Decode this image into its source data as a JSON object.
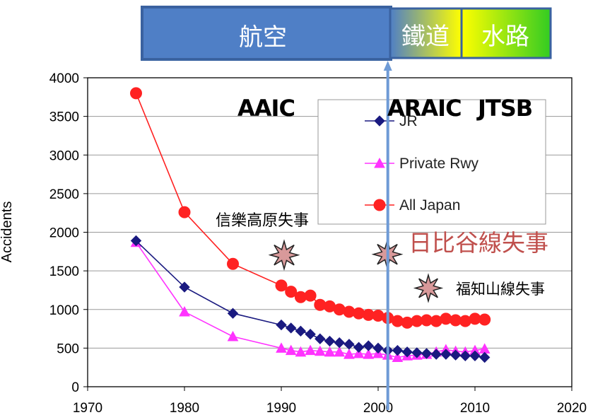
{
  "bands": {
    "air": "航空",
    "rail": "鐵道",
    "marine": "水路"
  },
  "agencies": {
    "aaic": "AAIC",
    "araic": "ARAIC",
    "jtsb": "JTSB"
  },
  "annotations": {
    "shigaraki": "信樂高原失事",
    "hibiya": "日比谷線失事",
    "fukuchiyama": "福知山線失事"
  },
  "colors": {
    "jr": "#1a1a80",
    "private": "#ff33ff",
    "all": "#ff2222",
    "band_air": "#4f7fc6",
    "band_rail_from": "#4f7fc6",
    "band_rail_to": "#ffff00",
    "band_marine_from": "#ffff00",
    "band_marine_to": "#33cc22",
    "hibiya_text": "#c0504d",
    "burst": "#d8999a"
  },
  "chart_data": {
    "type": "line",
    "title": "",
    "xlabel": "",
    "ylabel": "Accidents",
    "xlim": [
      1970,
      2020
    ],
    "ylim": [
      0,
      4000
    ],
    "xticks": [
      1970,
      1980,
      1990,
      2000,
      2010,
      2020
    ],
    "yticks": [
      0,
      500,
      1000,
      1500,
      2000,
      2500,
      3000,
      3500,
      4000
    ],
    "grid": "horizontal",
    "legend": "top-right",
    "marker_line_year": 2001,
    "series": [
      {
        "name": "JR",
        "marker": "diamond",
        "x": [
          1975,
          1980,
          1985,
          1990,
          1991,
          1992,
          1993,
          1994,
          1995,
          1996,
          1997,
          1998,
          1999,
          2000,
          2001,
          2002,
          2003,
          2004,
          2005,
          2006,
          2007,
          2008,
          2009,
          2010,
          2011
        ],
        "y": [
          1890,
          1290,
          950,
          800,
          760,
          720,
          680,
          620,
          590,
          570,
          550,
          510,
          530,
          500,
          470,
          470,
          450,
          440,
          430,
          420,
          420,
          410,
          400,
          400,
          380
        ]
      },
      {
        "name": "Private Rwy",
        "marker": "triangle",
        "x": [
          1975,
          1980,
          1985,
          1990,
          1991,
          1992,
          1993,
          1994,
          1995,
          1996,
          1997,
          1998,
          1999,
          2000,
          2001,
          2002,
          2003,
          2004,
          2005,
          2006,
          2007,
          2008,
          2009,
          2010,
          2011
        ],
        "y": [
          1870,
          970,
          650,
          500,
          470,
          450,
          470,
          460,
          450,
          450,
          420,
          430,
          420,
          430,
          410,
          380,
          400,
          410,
          420,
          450,
          480,
          460,
          450,
          470,
          490
        ]
      },
      {
        "name": "All Japan",
        "marker": "circle",
        "x": [
          1975,
          1980,
          1985,
          1990,
          1991,
          1992,
          1993,
          1994,
          1995,
          1996,
          1997,
          1998,
          1999,
          2000,
          2001,
          2002,
          2003,
          2004,
          2005,
          2006,
          2007,
          2008,
          2009,
          2010,
          2011
        ],
        "y": [
          3800,
          2260,
          1590,
          1310,
          1230,
          1160,
          1180,
          1060,
          1040,
          1000,
          970,
          950,
          930,
          920,
          890,
          850,
          830,
          850,
          860,
          850,
          880,
          860,
          850,
          880,
          870
        ]
      }
    ]
  }
}
